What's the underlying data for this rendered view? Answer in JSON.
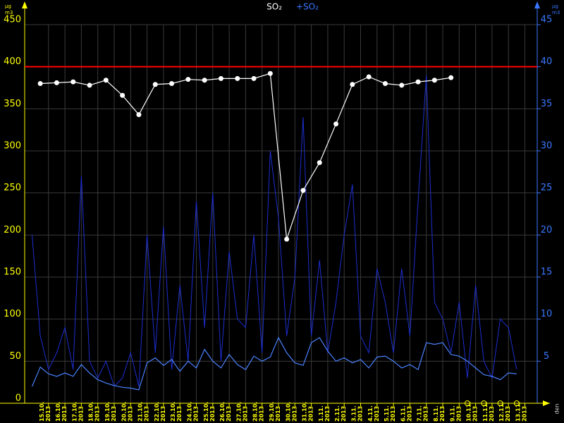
{
  "chart_data": {
    "type": "line",
    "y_unit_num": "µg",
    "y_unit_den": "m3",
    "x_label": "den",
    "xlim": [
      -0.95,
      30.25
    ],
    "ylim": [
      0,
      450
    ],
    "y2lim": [
      0,
      45
    ],
    "yticks": [
      0,
      50,
      100,
      150,
      200,
      250,
      300,
      350,
      400,
      450
    ],
    "y2ticks": [
      5,
      10,
      15,
      20,
      25,
      30,
      35,
      40,
      45
    ],
    "xticks": [
      {
        "value": 0.5,
        "label": "15.10.\n2013"
      },
      {
        "value": 1.5,
        "label": "16.10.\n2013"
      },
      {
        "value": 2.5,
        "label": "17.10.\n2013"
      },
      {
        "value": 3.5,
        "label": "18.10.\n2013"
      },
      {
        "value": 4.5,
        "label": "19.10.\n2013"
      },
      {
        "value": 5.5,
        "label": "20.10.\n2013"
      },
      {
        "value": 6.5,
        "label": "21.10.\n2013"
      },
      {
        "value": 7.5,
        "label": "22.10.\n2013"
      },
      {
        "value": 8.5,
        "label": "23.10.\n2013"
      },
      {
        "value": 9.5,
        "label": "24.10.\n2013"
      },
      {
        "value": 10.5,
        "label": "25.10.\n2013"
      },
      {
        "value": 11.5,
        "label": "26.10.\n2013"
      },
      {
        "value": 12.5,
        "label": "27.10.\n2013"
      },
      {
        "value": 13.5,
        "label": "28.10.\n2013"
      },
      {
        "value": 14.5,
        "label": "29.10.\n2013"
      },
      {
        "value": 15.5,
        "label": "30.10.\n2013"
      },
      {
        "value": 16.5,
        "label": "31.10.\n2013"
      },
      {
        "value": 17.5,
        "label": "1.11.\n2013"
      },
      {
        "value": 18.5,
        "label": "2.11.\n2013"
      },
      {
        "value": 19.5,
        "label": "3.11.\n2013"
      },
      {
        "value": 20.5,
        "label": "4.11.\n2013"
      },
      {
        "value": 21.5,
        "label": "5.11.\n2013"
      },
      {
        "value": 22.5,
        "label": "6.11.\n2013"
      },
      {
        "value": 23.5,
        "label": "7.11.\n2013"
      },
      {
        "value": 24.5,
        "label": "8.11.\n2013"
      },
      {
        "value": 25.5,
        "label": "9.11.\n2013"
      },
      {
        "value": 26.5,
        "label": "10.11.\n2013"
      },
      {
        "value": 27.5,
        "label": "11.11.\n2013"
      },
      {
        "value": 28.5,
        "label": "12.11.\n2013"
      },
      {
        "value": 29.5,
        "label": "13.11.\n2013"
      }
    ],
    "grid": true,
    "limit": 400,
    "limit_color": "#ff0000",
    "series": [
      {
        "name": "+SO₂",
        "color": "#1c2fd0",
        "axis": "y2",
        "x": [
          -0.5,
          0,
          0.5,
          1,
          1.5,
          2,
          2.5,
          3,
          3.5,
          4,
          4.5,
          5,
          5.5,
          6,
          6.5,
          7,
          7.5,
          8,
          8.5,
          9,
          9.5,
          10,
          10.5,
          11,
          11.5,
          12,
          12.5,
          13,
          13.5,
          14,
          14.5,
          15,
          15.5,
          16,
          16.5,
          17,
          17.5,
          18,
          18.5,
          19,
          19.5,
          20,
          20.5,
          21,
          21.5,
          22,
          22.5,
          23,
          23.5,
          24,
          24.5,
          25,
          25.5,
          26,
          26.5,
          27,
          27.5,
          28,
          28.5,
          29
        ],
        "values": [
          20,
          8,
          4,
          6,
          9,
          4,
          27,
          5,
          3,
          5,
          2,
          3,
          6,
          2,
          20,
          6,
          21,
          4,
          14,
          5,
          24,
          9,
          25,
          5,
          18,
          10,
          9,
          20,
          6,
          30,
          22,
          8,
          15,
          34,
          8,
          17,
          6,
          12,
          20,
          26,
          8,
          6,
          16,
          12,
          6,
          16,
          8,
          24,
          39,
          12,
          10,
          6,
          12,
          3,
          14,
          5,
          3,
          10,
          9,
          4
        ]
      },
      {
        "color": "#4a82ff",
        "axis": "y2",
        "x": [
          -0.5,
          0,
          0.5,
          1,
          1.5,
          2,
          2.5,
          3,
          3.5,
          4,
          4.5,
          5,
          5.5,
          6,
          6.5,
          7,
          7.5,
          8,
          8.5,
          9,
          9.5,
          10,
          10.5,
          11,
          11.5,
          12,
          12.5,
          13,
          13.5,
          14,
          14.5,
          15,
          15.5,
          16,
          16.5,
          17,
          17.5,
          18,
          18.5,
          19,
          19.5,
          20,
          20.5,
          21,
          21.5,
          22,
          22.5,
          23,
          23.5,
          24,
          24.5,
          25,
          25.5,
          26,
          26.5,
          27,
          27.5,
          28,
          28.5,
          29
        ],
        "values": [
          2.0,
          4.3,
          3.5,
          3.2,
          3.6,
          3.2,
          4.6,
          3.6,
          2.8,
          2.4,
          2.1,
          1.9,
          1.8,
          1.6,
          4.8,
          5.4,
          4.5,
          5.2,
          3.8,
          5.0,
          4.2,
          6.4,
          5.0,
          4.2,
          5.8,
          4.6,
          4.0,
          5.6,
          5.0,
          5.5,
          7.8,
          6.0,
          4.8,
          4.5,
          7.2,
          7.8,
          6.2,
          5.0,
          5.4,
          4.8,
          5.2,
          4.2,
          5.5,
          5.6,
          5.0,
          4.2,
          4.6,
          4.0,
          7.2,
          7.0,
          7.2,
          5.8,
          5.6,
          5.0,
          4.2,
          3.4,
          3.2,
          2.8,
          3.6,
          3.5
        ]
      },
      {
        "name": "SO₂",
        "color": "#ffffff",
        "x": [
          0,
          1,
          2,
          3,
          4,
          5,
          6,
          7,
          8,
          9,
          10,
          11,
          12,
          13,
          14,
          15,
          16,
          17,
          18,
          19,
          20,
          21,
          22,
          23,
          24,
          25,
          26,
          27,
          28,
          29
        ],
        "values": [
          380,
          381,
          382,
          378,
          384,
          366,
          343,
          379,
          380,
          385,
          384,
          386,
          386,
          386,
          392,
          195,
          253,
          286,
          332,
          379,
          388,
          380,
          378,
          382,
          384,
          387,
          null,
          null,
          null,
          null
        ]
      }
    ]
  }
}
